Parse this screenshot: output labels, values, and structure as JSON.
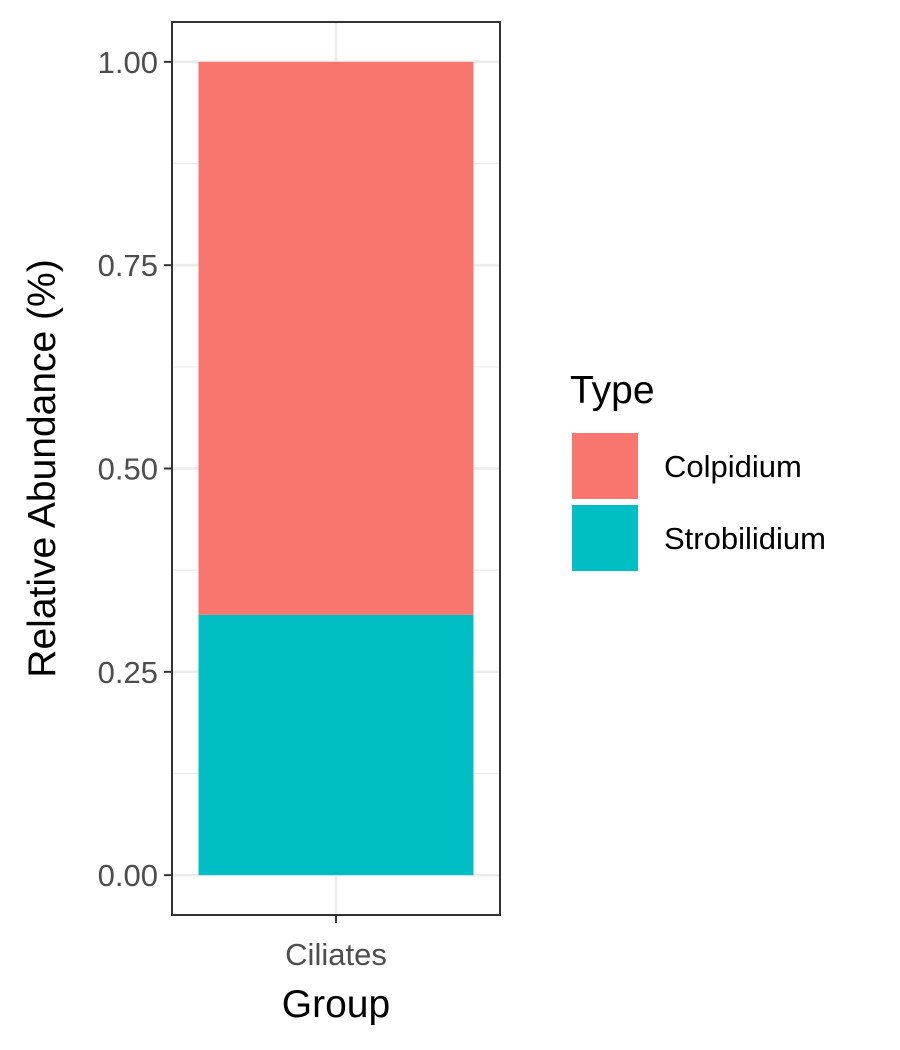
{
  "chart_data": {
    "type": "bar",
    "stacked": true,
    "categories": [
      "Ciliates"
    ],
    "series": [
      {
        "name": "Strobilidium",
        "values": [
          0.32
        ],
        "color": "#00BFC4"
      },
      {
        "name": "Colpidium",
        "values": [
          0.68
        ],
        "color": "#F8766D"
      }
    ],
    "xlabel": "Group",
    "ylabel": "Relative Abundance (%)",
    "ylim": [
      -0.049,
      1.049
    ],
    "yticks": [
      0.0,
      0.25,
      0.5,
      0.75,
      1.0
    ],
    "ytick_labels": [
      "0.00",
      "0.25",
      "0.50",
      "0.75",
      "1.00"
    ],
    "legend": {
      "title": "Type",
      "placement": "right",
      "entries": [
        "Colpidium",
        "Strobilidium"
      ]
    },
    "grid": true,
    "theme": "bw"
  },
  "colors": {
    "gridline": "#EBEBEB",
    "panel_border": "#333333",
    "tick_text": "#4D4D4D"
  }
}
